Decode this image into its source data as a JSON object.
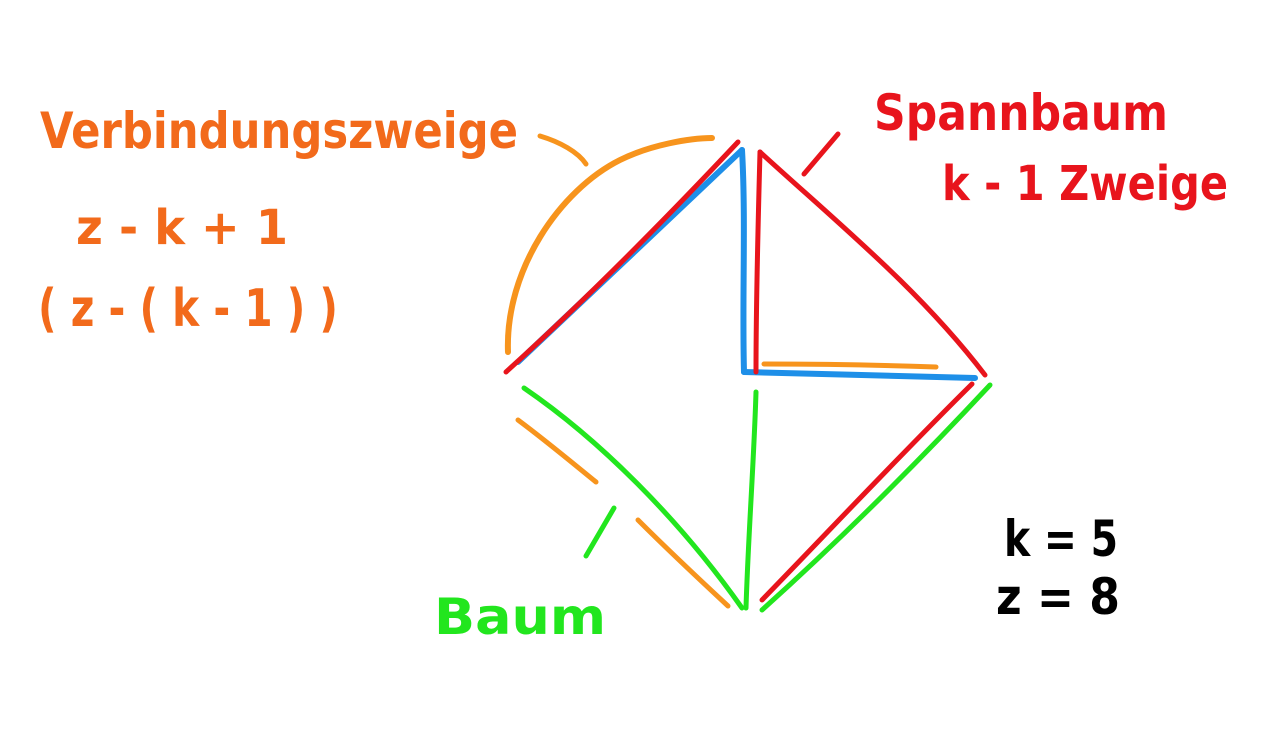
{
  "colors": {
    "orange": "#f7941d",
    "orange_text": "#f26a1b",
    "red": "#e8141c",
    "blue": "#1e8fe8",
    "green": "#22e61e",
    "black": "#000000"
  },
  "labels": {
    "connecting_branches": "Verbindungszweige",
    "formula_1": "z - k + 1",
    "formula_2": "( z - ( k - 1 ) )",
    "spanning_tree": "Spannbaum",
    "spanning_tree_branches": "k - 1 Zweige",
    "tree": "Baum",
    "k_value": "k = 5",
    "z_value": "z = 8"
  }
}
